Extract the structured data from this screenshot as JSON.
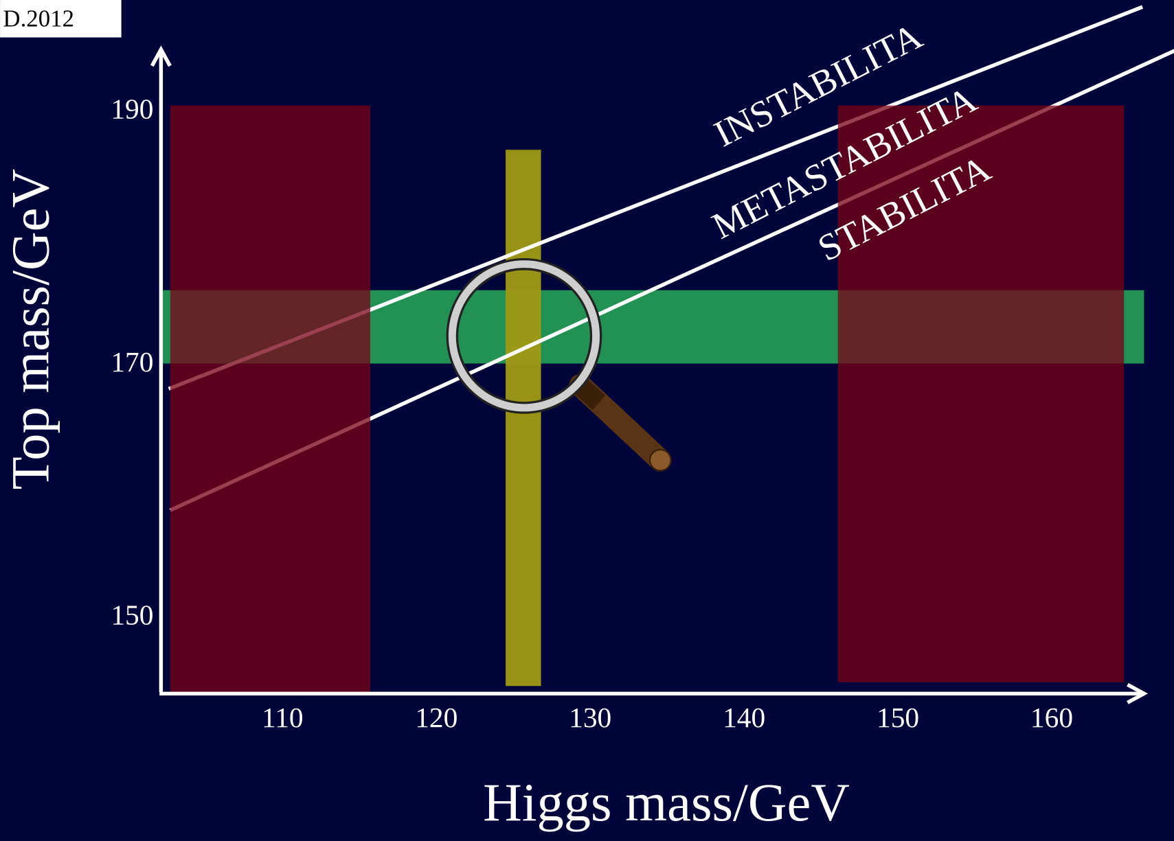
{
  "chart_data": {
    "type": "regions",
    "note": "D.2012",
    "x_label": "Higgs mass/GeV",
    "y_label": "Top mass/GeV",
    "xlim": [
      102,
      166
    ],
    "ylim": [
      144,
      195
    ],
    "xticks": [
      110,
      120,
      130,
      140,
      150,
      160
    ],
    "yticks": [
      150,
      170,
      190
    ],
    "regions": [
      {
        "x": [
          102,
          166
        ],
        "y": [
          170.1,
          175.9
        ],
        "color": "#239a55"
      },
      {
        "x": [
          124.5,
          126.8
        ],
        "y": [
          144.6,
          187
        ],
        "color": "#a09a14"
      },
      {
        "x": [
          102.7,
          115.7
        ],
        "y": [
          144.1,
          190.5
        ],
        "color": "#7a0015"
      },
      {
        "x": [
          146.1,
          164.7
        ],
        "y": [
          144.9,
          190.5
        ],
        "color": "#7a0015"
      }
    ],
    "lines": [
      {
        "x": [
          102.6,
          165.9
        ],
        "y": [
          168.1,
          198.3
        ],
        "color": "#ffffff"
      },
      {
        "x": [
          102.7,
          168.1
        ],
        "y": [
          158.5,
          194.9
        ],
        "color": "#ffffff"
      }
    ],
    "annotations": [
      "INSTABILITA",
      "METASTABILITA",
      "STABILITA"
    ]
  }
}
